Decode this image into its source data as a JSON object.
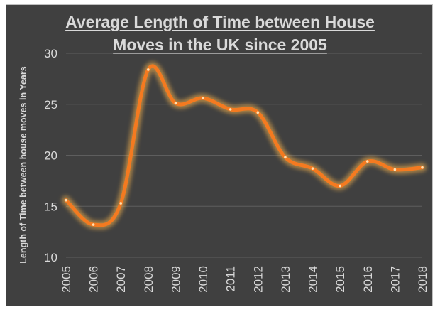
{
  "chart_data": {
    "type": "line",
    "title_line1": "Average Length of Time between House",
    "title_line2": "Moves in the UK since 2005",
    "xlabel": "",
    "ylabel": "Length of Time between house moves in Years",
    "ylim": [
      10,
      30
    ],
    "yticks": [
      "10",
      "15",
      "20",
      "25",
      "30"
    ],
    "categories": [
      "2005",
      "2006",
      "2007",
      "2008",
      "2009",
      "2010",
      "2011",
      "2012",
      "2013",
      "2014",
      "2015",
      "2016",
      "2017",
      "2018"
    ],
    "values": [
      15.6,
      13.2,
      15.3,
      28.4,
      25.1,
      25.6,
      24.5,
      24.2,
      19.8,
      18.7,
      17.0,
      19.4,
      18.6,
      18.8
    ],
    "grid": "horizontal",
    "legend": "none",
    "colors": {
      "line": "#f47a20",
      "glow": "#ffb84d",
      "background": "#404040",
      "grid": "#5e5e5e",
      "text": "#d9d9d9"
    }
  }
}
